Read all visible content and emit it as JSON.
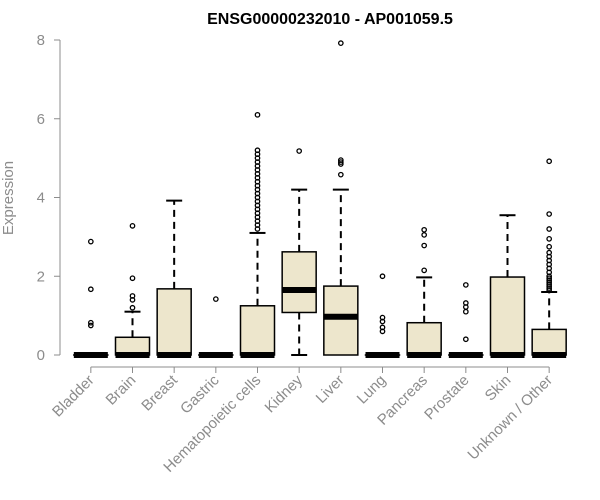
{
  "chart_data": {
    "type": "box",
    "title": "ENSG00000232010 - AP001059.5",
    "xlabel": "",
    "ylabel": "Expression",
    "ylim": [
      0,
      8
    ],
    "yticks": [
      0,
      2,
      4,
      6,
      8
    ],
    "box_fill": "#ede6cc",
    "box_stroke": "#000000",
    "axis_color": "#8c8c8c",
    "categories": [
      "Bladder",
      "Brain",
      "Breast",
      "Gastric",
      "Hematopoietic cells",
      "Kidney",
      "Liver",
      "Lung",
      "Pancreas",
      "Prostate",
      "Skin",
      "Unknown / Other"
    ],
    "boxes": [
      {
        "q1": 0,
        "median": 0,
        "q3": 0,
        "whisker_low": 0,
        "whisker_high": 0,
        "outliers": [
          2.88,
          1.67,
          0.82,
          0.75
        ]
      },
      {
        "q1": 0,
        "median": 0,
        "q3": 0.45,
        "whisker_low": 0,
        "whisker_high": 1.1,
        "outliers": [
          3.28,
          1.95,
          1.5,
          1.4,
          1.2
        ]
      },
      {
        "q1": 0,
        "median": 0,
        "q3": 1.68,
        "whisker_low": 0,
        "whisker_high": 3.92,
        "outliers": []
      },
      {
        "q1": 0,
        "median": 0,
        "q3": 0,
        "whisker_low": 0,
        "whisker_high": 0,
        "outliers": [
          1.42
        ]
      },
      {
        "q1": 0,
        "median": 0,
        "q3": 1.25,
        "whisker_low": 0,
        "whisker_high": 3.1,
        "outliers": [
          6.1,
          5.2,
          5.1,
          5.0,
          4.9,
          4.8,
          4.7,
          4.6,
          4.5,
          4.4,
          4.3,
          4.2,
          4.1,
          4.0,
          3.9,
          3.8,
          3.7,
          3.6,
          3.5,
          3.4,
          3.3,
          3.2
        ]
      },
      {
        "q1": 1.08,
        "median": 1.65,
        "q3": 2.62,
        "whisker_low": 0,
        "whisker_high": 4.2,
        "outliers": [
          5.18
        ]
      },
      {
        "q1": 0,
        "median": 0.97,
        "q3": 1.75,
        "whisker_low": 0,
        "whisker_high": 4.2,
        "outliers": [
          7.92,
          4.95,
          4.9,
          4.85,
          4.58
        ]
      },
      {
        "q1": 0,
        "median": 0,
        "q3": 0,
        "whisker_low": 0,
        "whisker_high": 0,
        "outliers": [
          2.0,
          0.95,
          0.85,
          0.7,
          0.6
        ]
      },
      {
        "q1": 0,
        "median": 0,
        "q3": 0.82,
        "whisker_low": 0,
        "whisker_high": 1.97,
        "outliers": [
          3.18,
          3.05,
          2.78,
          2.15
        ]
      },
      {
        "q1": 0,
        "median": 0,
        "q3": 0,
        "whisker_low": 0,
        "whisker_high": 0,
        "outliers": [
          1.78,
          1.32,
          1.22,
          1.1,
          0.4
        ]
      },
      {
        "q1": 0,
        "median": 0,
        "q3": 1.98,
        "whisker_low": 0,
        "whisker_high": 3.55,
        "outliers": []
      },
      {
        "q1": 0,
        "median": 0,
        "q3": 0.65,
        "whisker_low": 0,
        "whisker_high": 1.6,
        "outliers": [
          4.92,
          3.58,
          3.2,
          2.95,
          2.75,
          2.6,
          2.5,
          2.4,
          2.3,
          2.2,
          2.1,
          2.0,
          1.95,
          1.9,
          1.85,
          1.8,
          1.75,
          1.7,
          1.65
        ]
      }
    ]
  }
}
